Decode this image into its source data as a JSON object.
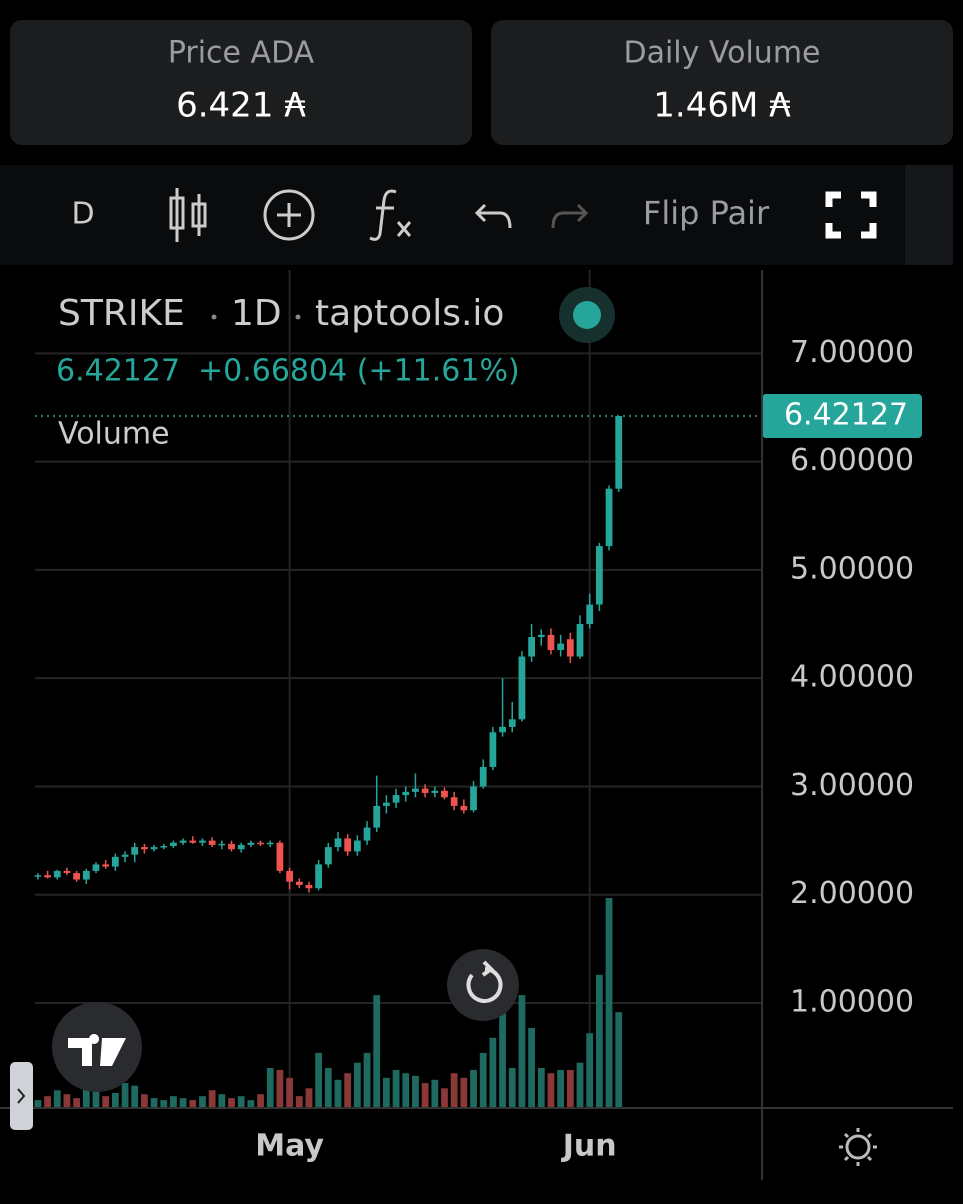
{
  "header": {
    "cards": [
      {
        "label": "Price ADA",
        "value": "6.421 ₳"
      },
      {
        "label": "Daily Volume",
        "value": "1.46M ₳"
      }
    ]
  },
  "toolbar": {
    "interval": "D",
    "flip": "Flip Pair"
  },
  "chart_data": {
    "type": "candlestick",
    "symbol": "STRIKE",
    "interval": "1D",
    "source": "taptools.io",
    "last_text": "6.42127",
    "change_text": "+0.66804 (+11.61%)",
    "volume_label": "Volume",
    "last_price": 6.42127,
    "up_color": "#26a69a",
    "down_color": "#ef5350",
    "volume_up_color": "#1e6a61",
    "volume_down_color": "#8a3838",
    "xlim": [
      -0.3,
      74.8
    ],
    "xticks": [
      {
        "value": 26,
        "label": "May"
      },
      {
        "value": 57,
        "label": "Jun"
      }
    ],
    "ylim": [
      0.03,
      7.77
    ],
    "yticks": [
      {
        "value": 1,
        "label": "1.00000"
      },
      {
        "value": 2,
        "label": "2.00000"
      },
      {
        "value": 3,
        "label": "3.00000"
      },
      {
        "value": 4,
        "label": "4.00000"
      },
      {
        "value": 5,
        "label": "5.00000"
      },
      {
        "value": 6,
        "label": "6.00000"
      },
      {
        "value": 7,
        "label": "7.00000"
      }
    ],
    "grid": true,
    "volume_ylim": [
      0,
      12770000
    ],
    "open": [
      2.17,
      2.18,
      2.16,
      2.22,
      2.2,
      2.14,
      2.22,
      2.28,
      2.26,
      2.35,
      2.37,
      2.44,
      2.42,
      2.44,
      2.45,
      2.48,
      2.5,
      2.48,
      2.5,
      2.46,
      2.47,
      2.42,
      2.46,
      2.48,
      2.47,
      2.48,
      2.22,
      2.12,
      2.09,
      2.06,
      2.28,
      2.44,
      2.52,
      2.4,
      2.5,
      2.62,
      2.82,
      2.85,
      2.92,
      2.95,
      2.98,
      2.94,
      2.96,
      2.9,
      2.82,
      2.78,
      3.0,
      3.18,
      3.5,
      3.55,
      3.62,
      4.2,
      4.38,
      4.4,
      4.26,
      4.36,
      4.2,
      4.5,
      4.68,
      5.22,
      5.75
    ],
    "high": [
      2.2,
      2.22,
      2.23,
      2.25,
      2.22,
      2.24,
      2.3,
      2.32,
      2.38,
      2.4,
      2.48,
      2.47,
      2.46,
      2.47,
      2.5,
      2.52,
      2.54,
      2.52,
      2.53,
      2.5,
      2.5,
      2.48,
      2.5,
      2.5,
      2.5,
      2.5,
      2.25,
      2.15,
      2.12,
      2.32,
      2.48,
      2.58,
      2.56,
      2.55,
      2.68,
      3.1,
      2.92,
      2.98,
      3.0,
      3.12,
      3.02,
      3.0,
      2.99,
      2.95,
      2.88,
      3.05,
      3.25,
      3.55,
      4.0,
      3.78,
      4.25,
      4.5,
      4.45,
      4.46,
      4.4,
      4.42,
      4.58,
      4.78,
      5.25,
      5.78,
      6.42127
    ],
    "low": [
      2.14,
      2.15,
      2.14,
      2.18,
      2.12,
      2.1,
      2.2,
      2.24,
      2.22,
      2.3,
      2.3,
      2.38,
      2.4,
      2.42,
      2.43,
      2.46,
      2.47,
      2.45,
      2.44,
      2.42,
      2.4,
      2.39,
      2.44,
      2.45,
      2.44,
      2.2,
      2.05,
      2.06,
      2.02,
      2.04,
      2.25,
      2.4,
      2.36,
      2.36,
      2.46,
      2.58,
      2.75,
      2.8,
      2.86,
      2.9,
      2.9,
      2.9,
      2.88,
      2.78,
      2.75,
      2.76,
      2.98,
      3.15,
      3.46,
      3.5,
      3.6,
      4.15,
      4.3,
      4.22,
      4.2,
      4.14,
      4.18,
      4.46,
      4.62,
      5.18,
      5.72
    ],
    "close": [
      2.18,
      2.16,
      2.22,
      2.2,
      2.14,
      2.22,
      2.28,
      2.26,
      2.35,
      2.37,
      2.44,
      2.42,
      2.44,
      2.45,
      2.48,
      2.5,
      2.48,
      2.5,
      2.46,
      2.47,
      2.42,
      2.46,
      2.48,
      2.47,
      2.48,
      2.22,
      2.12,
      2.09,
      2.06,
      2.28,
      2.44,
      2.52,
      2.4,
      2.5,
      2.62,
      2.82,
      2.85,
      2.92,
      2.95,
      2.98,
      2.94,
      2.96,
      2.9,
      2.82,
      2.78,
      3.0,
      3.18,
      3.5,
      3.55,
      3.62,
      4.2,
      4.38,
      4.4,
      4.26,
      4.32,
      4.2,
      4.5,
      4.68,
      5.22,
      5.75,
      6.42127
    ],
    "volume": [
      120000,
      180000,
      270000,
      210000,
      150000,
      300000,
      270000,
      180000,
      230000,
      380000,
      340000,
      210000,
      150000,
      120000,
      180000,
      150000,
      120000,
      180000,
      270000,
      210000,
      150000,
      180000,
      120000,
      210000,
      610000,
      580000,
      460000,
      180000,
      300000,
      840000,
      610000,
      430000,
      530000,
      690000,
      840000,
      1720000,
      460000,
      580000,
      530000,
      490000,
      380000,
      430000,
      300000,
      530000,
      460000,
      580000,
      840000,
      1070000,
      1490000,
      610000,
      1720000,
      1220000,
      610000,
      530000,
      580000,
      580000,
      690000,
      1140000,
      2030000,
      3200000,
      1460000
    ]
  }
}
